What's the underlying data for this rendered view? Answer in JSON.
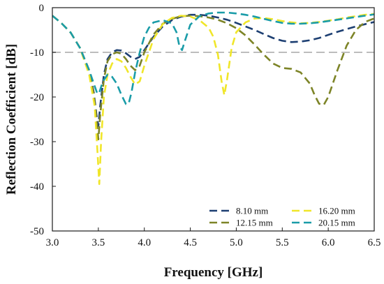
{
  "chart_data": {
    "type": "line",
    "xlabel": "Frequency [GHz]",
    "ylabel": "Reflection Coefficient [dB]",
    "xlim": [
      3.0,
      6.5
    ],
    "ylim": [
      -50,
      0
    ],
    "xticks": [
      3.0,
      3.5,
      4.0,
      4.5,
      5.0,
      5.5,
      6.0,
      6.5
    ],
    "xtick_labels": [
      "3.0",
      "3.5",
      "4.0",
      "4.5",
      "5.0",
      "5.5",
      "6.0",
      "6.5"
    ],
    "yticks": [
      0,
      -10,
      -20,
      -30,
      -40,
      -50
    ],
    "ytick_labels": [
      "0",
      "-10",
      "-20",
      "-30",
      "-40",
      "-50"
    ],
    "reference_line": {
      "y": -10,
      "color": "#bdbdbd"
    },
    "grid": false,
    "legend_position": "bottom-right",
    "line_style": "dashed",
    "series": [
      {
        "name": "8.10 mm",
        "color": "#1d3f72",
        "x": [
          3.0,
          3.1,
          3.2,
          3.3,
          3.4,
          3.45,
          3.48,
          3.5,
          3.52,
          3.56,
          3.6,
          3.65,
          3.7,
          3.75,
          3.8,
          3.85,
          3.9,
          3.95,
          4.0,
          4.1,
          4.2,
          4.3,
          4.4,
          4.5,
          4.6,
          4.7,
          4.8,
          4.9,
          5.0,
          5.1,
          5.2,
          5.3,
          5.4,
          5.5,
          5.6,
          5.7,
          5.8,
          5.9,
          6.0,
          6.1,
          6.2,
          6.3,
          6.4,
          6.5
        ],
        "y": [
          -1.8,
          -3.5,
          -5.6,
          -9.0,
          -14.0,
          -19.0,
          -24.0,
          -26.5,
          -22.0,
          -15.0,
          -11.5,
          -10.0,
          -9.5,
          -9.6,
          -10.2,
          -11.0,
          -11.5,
          -11.0,
          -9.5,
          -6.5,
          -4.2,
          -2.8,
          -2.0,
          -1.6,
          -1.6,
          -1.8,
          -2.2,
          -2.7,
          -3.4,
          -4.2,
          -5.0,
          -5.9,
          -6.8,
          -7.4,
          -7.7,
          -7.6,
          -7.3,
          -6.8,
          -6.1,
          -5.4,
          -4.8,
          -4.2,
          -3.7,
          -3.2
        ]
      },
      {
        "name": "12.15 mm",
        "color": "#7d8427",
        "x": [
          3.0,
          3.1,
          3.2,
          3.3,
          3.4,
          3.45,
          3.48,
          3.5,
          3.52,
          3.56,
          3.6,
          3.65,
          3.7,
          3.75,
          3.8,
          3.85,
          3.9,
          3.95,
          4.0,
          4.1,
          4.2,
          4.3,
          4.4,
          4.5,
          4.6,
          4.7,
          4.8,
          4.9,
          5.0,
          5.1,
          5.2,
          5.3,
          5.4,
          5.5,
          5.6,
          5.7,
          5.8,
          5.85,
          5.9,
          5.95,
          6.0,
          6.1,
          6.2,
          6.3,
          6.4,
          6.5
        ],
        "y": [
          -1.8,
          -3.5,
          -5.6,
          -9.0,
          -14.0,
          -19.5,
          -25.0,
          -29.5,
          -24.0,
          -16.0,
          -12.0,
          -10.4,
          -10.0,
          -10.3,
          -11.5,
          -13.0,
          -14.0,
          -13.0,
          -10.0,
          -6.0,
          -3.6,
          -2.5,
          -1.9,
          -1.8,
          -1.9,
          -2.2,
          -2.7,
          -3.5,
          -4.6,
          -6.2,
          -8.3,
          -10.5,
          -12.5,
          -13.5,
          -13.7,
          -14.5,
          -17.0,
          -19.5,
          -21.5,
          -21.8,
          -20.0,
          -14.0,
          -8.5,
          -5.0,
          -3.2,
          -2.4
        ]
      },
      {
        "name": "16.20 mm",
        "color": "#f0e629",
        "x": [
          3.0,
          3.1,
          3.2,
          3.3,
          3.4,
          3.46,
          3.49,
          3.51,
          3.53,
          3.56,
          3.6,
          3.65,
          3.7,
          3.75,
          3.8,
          3.85,
          3.9,
          3.95,
          4.0,
          4.1,
          4.2,
          4.3,
          4.4,
          4.5,
          4.6,
          4.7,
          4.75,
          4.8,
          4.84,
          4.87,
          4.9,
          4.95,
          5.0,
          5.1,
          5.2,
          5.3,
          5.4,
          5.5,
          5.6,
          5.7,
          5.8,
          5.9,
          6.0,
          6.1,
          6.2,
          6.3,
          6.4,
          6.5
        ],
        "y": [
          -1.8,
          -3.5,
          -5.6,
          -9.0,
          -15.0,
          -22.0,
          -32.0,
          -39.5,
          -30.0,
          -20.0,
          -15.0,
          -12.5,
          -11.5,
          -12.0,
          -13.5,
          -15.5,
          -17.2,
          -16.5,
          -13.0,
          -7.0,
          -3.7,
          -2.3,
          -1.8,
          -2.0,
          -2.8,
          -4.5,
          -6.5,
          -10.5,
          -16.5,
          -19.6,
          -16.0,
          -9.0,
          -5.5,
          -3.3,
          -2.4,
          -2.3,
          -2.6,
          -3.0,
          -3.3,
          -3.5,
          -3.4,
          -3.2,
          -2.9,
          -2.6,
          -2.2,
          -1.9,
          -1.6,
          -1.4
        ]
      },
      {
        "name": "20.15 mm",
        "color": "#1a9ca8",
        "x": [
          3.0,
          3.1,
          3.2,
          3.3,
          3.4,
          3.45,
          3.49,
          3.51,
          3.55,
          3.6,
          3.65,
          3.7,
          3.75,
          3.8,
          3.83,
          3.86,
          3.9,
          3.95,
          4.0,
          4.05,
          4.1,
          4.2,
          4.3,
          4.35,
          4.38,
          4.41,
          4.44,
          4.5,
          4.6,
          4.7,
          4.8,
          4.9,
          5.0,
          5.1,
          5.2,
          5.3,
          5.4,
          5.5,
          5.6,
          5.7,
          5.8,
          5.9,
          6.0,
          6.1,
          6.2,
          6.3,
          6.4,
          6.5
        ],
        "y": [
          -1.8,
          -3.5,
          -5.6,
          -9.0,
          -14.0,
          -17.0,
          -19.3,
          -19.0,
          -16.5,
          -15.0,
          -15.5,
          -17.0,
          -19.5,
          -21.6,
          -21.5,
          -19.0,
          -14.5,
          -10.0,
          -6.5,
          -4.5,
          -3.3,
          -2.8,
          -3.5,
          -5.5,
          -8.5,
          -9.5,
          -7.5,
          -3.8,
          -1.9,
          -1.3,
          -1.1,
          -1.1,
          -1.3,
          -1.6,
          -2.0,
          -2.5,
          -3.0,
          -3.4,
          -3.6,
          -3.6,
          -3.5,
          -3.3,
          -3.0,
          -2.7,
          -2.4,
          -2.1,
          -1.8,
          -1.5
        ]
      }
    ]
  }
}
